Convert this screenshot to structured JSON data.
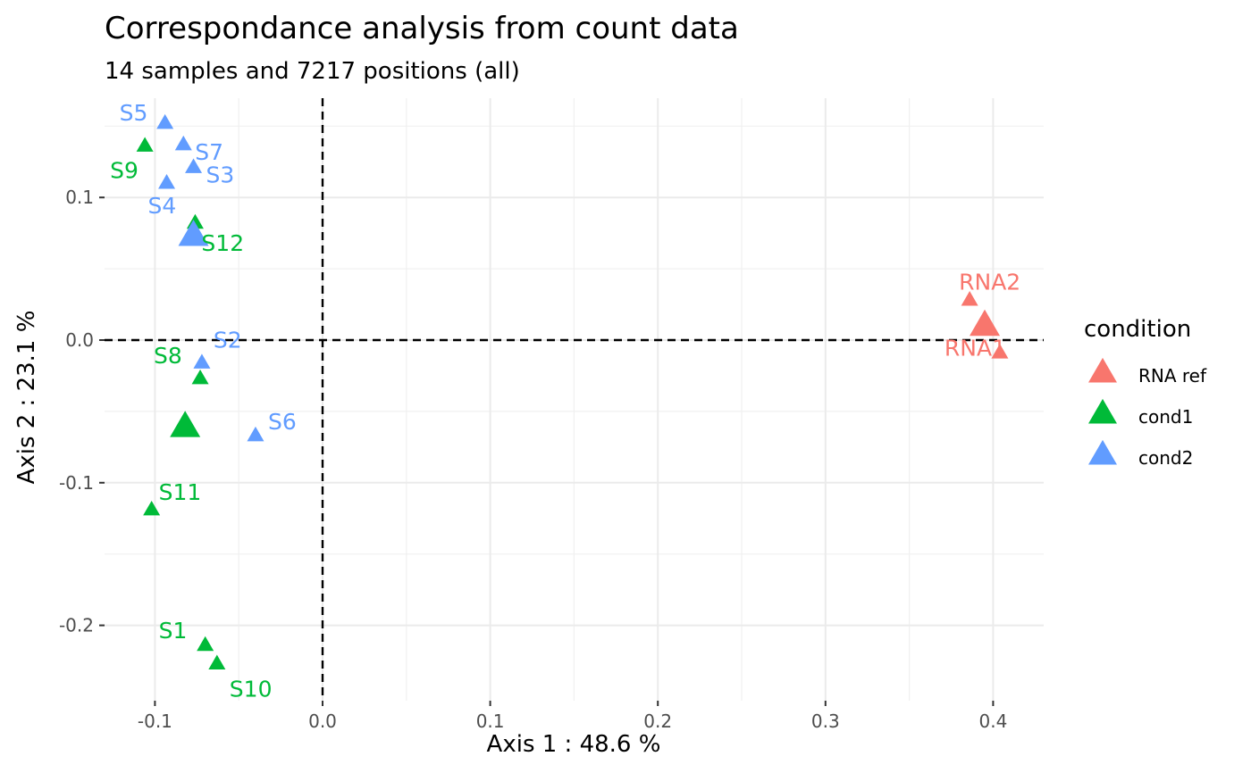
{
  "chart_data": {
    "type": "scatter",
    "title": "Correspondance analysis from count data",
    "subtitle": "14 samples and 7217 positions (all)",
    "xlabel": "Axis 1 : 48.6 %",
    "ylabel": "Axis 2 : 23.1 %",
    "xlim": [
      -0.13,
      0.43
    ],
    "ylim": [
      -0.25,
      0.17
    ],
    "x_ticks": [
      -0.1,
      0.0,
      0.1,
      0.2,
      0.3,
      0.4
    ],
    "x_tick_labels": [
      "-0.1",
      "0.0",
      "0.1",
      "0.2",
      "0.3",
      "0.4"
    ],
    "y_ticks": [
      -0.2,
      -0.1,
      0.0,
      0.1
    ],
    "y_tick_labels": [
      "-0.2",
      "-0.1",
      "0.0",
      "0.1"
    ],
    "grid": true,
    "reference_lines": {
      "x": 0,
      "y": 0,
      "style": "dashed"
    },
    "legend": {
      "title": "condition",
      "placement": "right"
    },
    "colors": {
      "RNA ref": "#F8766D",
      "cond1": "#00BA38",
      "cond2": "#619CFF"
    },
    "series": [
      {
        "name": "RNA ref",
        "points": [
          {
            "label": "RNA2",
            "x": 0.386,
            "y": 0.028
          },
          {
            "label": "RNA1",
            "x": 0.404,
            "y": -0.009
          }
        ],
        "centroid": {
          "x": 0.395,
          "y": 0.01
        }
      },
      {
        "name": "cond1",
        "points": [
          {
            "label": "S1",
            "x": -0.07,
            "y": -0.214
          },
          {
            "label": "S8",
            "x": -0.073,
            "y": -0.027
          },
          {
            "label": "S9",
            "x": -0.106,
            "y": 0.136
          },
          {
            "label": "S10",
            "x": -0.063,
            "y": -0.227
          },
          {
            "label": "S11",
            "x": -0.102,
            "y": -0.119
          },
          {
            "label": "S12",
            "x": -0.076,
            "y": 0.082
          }
        ],
        "centroid": {
          "x": -0.082,
          "y": -0.061
        }
      },
      {
        "name": "cond2",
        "points": [
          {
            "label": "S2",
            "x": -0.072,
            "y": -0.016
          },
          {
            "label": "S3",
            "x": -0.077,
            "y": 0.121
          },
          {
            "label": "S4",
            "x": -0.093,
            "y": 0.11
          },
          {
            "label": "S5",
            "x": -0.094,
            "y": 0.152
          },
          {
            "label": "S6",
            "x": -0.04,
            "y": -0.067
          },
          {
            "label": "S7",
            "x": -0.083,
            "y": 0.137
          }
        ],
        "centroid": {
          "x": -0.077,
          "y": 0.073
        }
      }
    ]
  }
}
